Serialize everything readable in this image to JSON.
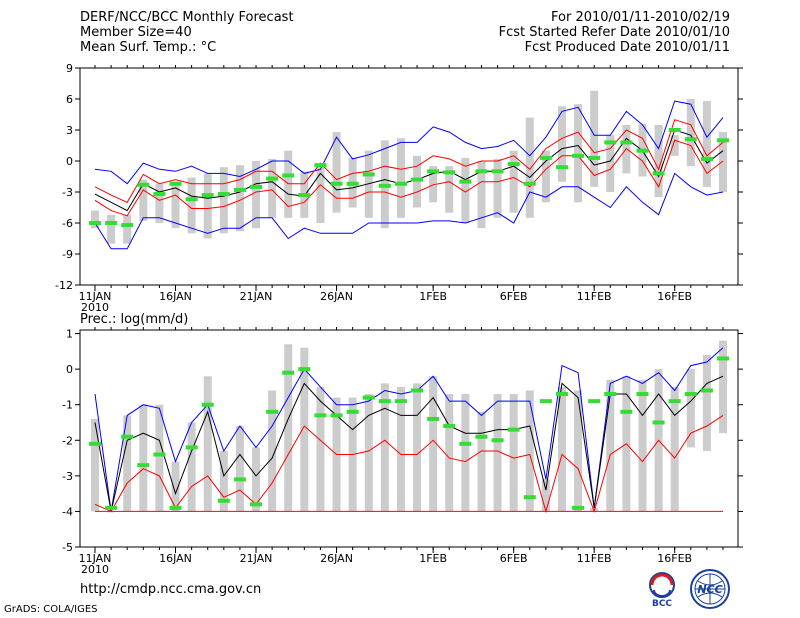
{
  "header": {
    "title": "DERF/NCC/BCC Monthly Forecast",
    "member_size": "Member Size=40",
    "variable": "Mean Surf. Temp.: °C",
    "period": "For 2010/01/11-2010/02/19",
    "started": "Fcst Started Refer Date 2010/01/10",
    "produced": "Fcst Produced Date 2010/01/11"
  },
  "footer": {
    "url": "http://cmdp.ncc.cma.gov.cn",
    "credit": "GrADS: COLA/IGES",
    "logo_bcc": "BCC",
    "logo_ncc": "NCC"
  },
  "colors": {
    "spread": "#cccccc",
    "envelope": "#0000ff",
    "mean": "#000000",
    "inner": "#ff0000",
    "observed": "#33dd33"
  },
  "chart_data": [
    {
      "type": "line",
      "title": "Mean Surf. Temp.: °C",
      "ylim": [
        -12,
        9
      ],
      "yticks": [
        -12,
        -9,
        -6,
        -3,
        0,
        3,
        6,
        9
      ],
      "xlabels": [
        {
          "i": 0,
          "text": "11JAN",
          "sub": "2010"
        },
        {
          "i": 5,
          "text": "16JAN"
        },
        {
          "i": 10,
          "text": "21JAN"
        },
        {
          "i": 15,
          "text": "26JAN"
        },
        {
          "i": 21,
          "text": "1FEB"
        },
        {
          "i": 26,
          "text": "6FEB"
        },
        {
          "i": 31,
          "text": "11FEB"
        },
        {
          "i": 36,
          "text": "16FEB"
        }
      ],
      "days": 40,
      "series": [
        {
          "name": "max",
          "color": "#0000ff",
          "values": [
            -0.8,
            -1.0,
            -2.2,
            -0.2,
            -0.8,
            -1.0,
            -0.5,
            -1.2,
            -1.2,
            -1.5,
            -0.8,
            0.0,
            0.0,
            -1.2,
            -0.8,
            2.3,
            0.2,
            0.6,
            1.2,
            1.8,
            1.8,
            3.3,
            2.8,
            1.8,
            1.2,
            1.4,
            2.0,
            0.5,
            2.3,
            4.8,
            5.2,
            2.5,
            2.5,
            4.8,
            3.5,
            1.2,
            5.8,
            5.5,
            2.3,
            4.2
          ]
        },
        {
          "name": "upper",
          "color": "#ff0000",
          "values": [
            -2.5,
            -3.3,
            -4.0,
            -1.3,
            -2.2,
            -1.8,
            -2.2,
            -2.2,
            -2.2,
            -1.8,
            -1.0,
            -1.0,
            -2.2,
            -2.2,
            -0.2,
            -1.8,
            -1.2,
            -1.0,
            -0.5,
            -0.8,
            -0.5,
            0.5,
            0.2,
            -0.5,
            0.0,
            0.0,
            0.5,
            -0.8,
            1.2,
            2.2,
            2.8,
            0.8,
            1.2,
            3.0,
            2.2,
            -0.8,
            4.0,
            3.5,
            0.5,
            1.8
          ]
        },
        {
          "name": "mean",
          "color": "#000000",
          "values": [
            -3.2,
            -4.0,
            -4.8,
            -2.2,
            -3.0,
            -2.6,
            -3.4,
            -3.6,
            -3.4,
            -3.0,
            -2.2,
            -2.0,
            -3.2,
            -3.4,
            -1.2,
            -2.8,
            -2.6,
            -2.2,
            -1.8,
            -2.2,
            -1.8,
            -1.2,
            -1.0,
            -1.8,
            -1.0,
            -1.0,
            -0.5,
            -1.6,
            0.0,
            1.2,
            1.5,
            -0.4,
            0.0,
            2.2,
            1.0,
            -1.5,
            3.0,
            2.5,
            -0.2,
            1.0
          ]
        },
        {
          "name": "lower",
          "color": "#ff0000",
          "values": [
            -3.8,
            -4.8,
            -5.3,
            -2.8,
            -3.8,
            -3.3,
            -4.6,
            -4.6,
            -4.4,
            -3.8,
            -3.0,
            -2.8,
            -4.4,
            -4.0,
            -2.3,
            -3.6,
            -3.6,
            -3.0,
            -3.0,
            -3.5,
            -3.0,
            -2.3,
            -2.0,
            -3.0,
            -2.0,
            -2.0,
            -1.6,
            -2.5,
            -0.8,
            0.5,
            0.5,
            -1.4,
            -0.8,
            1.2,
            0.0,
            -2.5,
            2.0,
            1.5,
            -1.2,
            0.0
          ]
        },
        {
          "name": "min",
          "color": "#0000ff",
          "values": [
            -6.0,
            -8.5,
            -8.5,
            -5.5,
            -5.5,
            -6.0,
            -6.5,
            -7.0,
            -6.5,
            -6.5,
            -5.5,
            -5.5,
            -7.5,
            -6.5,
            -7.0,
            -7.0,
            -7.0,
            -6.0,
            -6.0,
            -6.0,
            -6.0,
            -5.8,
            -5.8,
            -6.0,
            -5.5,
            -5.0,
            -6.0,
            -3.0,
            -3.5,
            -2.5,
            -2.5,
            -3.5,
            -4.5,
            -2.5,
            -4.0,
            -5.2,
            -1.2,
            -2.5,
            -3.3,
            -3.0
          ]
        }
      ],
      "box_top": [
        -4.8,
        -5.2,
        -5.2,
        -1.8,
        -2.2,
        -2.0,
        -1.6,
        -1.2,
        -0.6,
        -0.4,
        0.0,
        0.2,
        1.0,
        -1.0,
        -0.3,
        2.8,
        0.3,
        1.0,
        2.0,
        2.2,
        0.5,
        -0.5,
        -0.5,
        0.3,
        0.0,
        0.2,
        1.0,
        4.2,
        1.0,
        5.3,
        5.5,
        6.8,
        2.5,
        3.5,
        3.6,
        3.5,
        2.5,
        6.0,
        5.8,
        2.8
      ],
      "box_bottom": [
        -6.5,
        -8.0,
        -8.0,
        -5.8,
        -6.0,
        -6.5,
        -7.0,
        -7.5,
        -7.0,
        -6.8,
        -6.5,
        -5.5,
        -5.5,
        -5.5,
        -6.0,
        -5.0,
        -4.5,
        -5.5,
        -6.5,
        -5.5,
        -4.5,
        -4.0,
        -5.0,
        -6.0,
        -6.5,
        -5.5,
        -5.0,
        -5.5,
        -4.0,
        -2.0,
        -4.0,
        -2.5,
        -3.0,
        -1.2,
        -1.5,
        -3.5,
        0.5,
        -0.5,
        -2.5,
        -3.0
      ],
      "observed": [
        -6.0,
        -6.0,
        -6.2,
        -2.3,
        -3.2,
        -2.2,
        -3.7,
        -3.3,
        -3.2,
        -2.8,
        -2.5,
        -1.7,
        -1.4,
        -3.3,
        -0.4,
        -2.2,
        -2.2,
        -1.3,
        -2.4,
        -2.2,
        -1.8,
        -1.0,
        -1.1,
        -2.0,
        -1.0,
        -1.0,
        -0.3,
        -2.2,
        0.3,
        -0.6,
        0.5,
        0.3,
        1.8,
        1.8,
        1.0,
        -1.2,
        3.0,
        2.1,
        0.2,
        2.0
      ]
    },
    {
      "type": "line",
      "title": "Prec.: log(mm/d)",
      "ylim": [
        -5,
        1.1
      ],
      "yticks": [
        -5,
        -4,
        -3,
        -2,
        -1,
        0,
        1
      ],
      "xlabels": [
        {
          "i": 0,
          "text": "11JAN",
          "sub": "2010"
        },
        {
          "i": 5,
          "text": "16JAN"
        },
        {
          "i": 10,
          "text": "21JAN"
        },
        {
          "i": 15,
          "text": "26JAN"
        },
        {
          "i": 21,
          "text": "1FEB"
        },
        {
          "i": 26,
          "text": "6FEB"
        },
        {
          "i": 31,
          "text": "11FEB"
        },
        {
          "i": 36,
          "text": "16FEB"
        }
      ],
      "days": 40,
      "series": [
        {
          "name": "max",
          "color": "#0000ff",
          "values": [
            -0.7,
            -4.0,
            -1.3,
            -1.0,
            -1.1,
            -2.6,
            -1.5,
            -1.0,
            -2.3,
            -1.6,
            -2.2,
            -1.6,
            -0.8,
            0.0,
            -0.5,
            -1.0,
            -1.0,
            -0.9,
            -0.6,
            -0.7,
            -0.6,
            -0.2,
            -0.9,
            -0.9,
            -1.3,
            -0.9,
            -0.9,
            -0.9,
            -3.1,
            0.1,
            -0.1,
            -3.9,
            -0.4,
            -0.2,
            -0.4,
            -0.1,
            -0.6,
            0.1,
            0.2,
            0.6
          ]
        },
        {
          "name": "mean",
          "color": "#000000",
          "values": [
            -1.5,
            -4.0,
            -2.0,
            -1.8,
            -2.0,
            -3.5,
            -2.3,
            -1.2,
            -3.0,
            -2.4,
            -3.0,
            -2.5,
            -1.4,
            -0.4,
            -0.9,
            -1.3,
            -1.7,
            -1.3,
            -1.1,
            -1.3,
            -1.3,
            -0.8,
            -1.6,
            -1.8,
            -1.8,
            -1.7,
            -1.7,
            -1.6,
            -3.4,
            -0.4,
            -0.8,
            -3.9,
            -0.7,
            -0.7,
            -1.3,
            -0.7,
            -1.3,
            -0.9,
            -0.4,
            -0.2
          ]
        },
        {
          "name": "lower",
          "color": "#ff0000",
          "values": [
            -3.8,
            -4.0,
            -3.2,
            -2.8,
            -3.0,
            -3.9,
            -3.3,
            -3.0,
            -3.6,
            -3.4,
            -3.8,
            -3.2,
            -2.4,
            -1.6,
            -2.0,
            -2.4,
            -2.4,
            -2.3,
            -2.0,
            -2.4,
            -2.4,
            -2.0,
            -2.5,
            -2.6,
            -2.3,
            -2.3,
            -2.5,
            -2.4,
            -4.0,
            -2.4,
            -2.8,
            -4.0,
            -2.4,
            -2.1,
            -2.6,
            -2.0,
            -2.5,
            -1.8,
            -1.6,
            -1.3
          ]
        },
        {
          "name": "min",
          "color": "#ff0000",
          "values": [
            -4,
            -4,
            -4,
            -4,
            -4,
            -4,
            -4,
            -4,
            -4,
            -4,
            -4,
            -4,
            -4,
            -4,
            -4,
            -4,
            -4,
            -4,
            -4,
            -4,
            -4,
            -4,
            -4,
            -4,
            -4,
            -4,
            -4,
            -4,
            -4,
            -4,
            -4,
            -4,
            -4,
            -4,
            -4,
            -4,
            -4,
            -4,
            -4,
            -4
          ]
        }
      ],
      "box_top": [
        -1.4,
        -4.0,
        -1.3,
        -1.0,
        -1.0,
        -2.6,
        -1.5,
        -0.2,
        -2.3,
        -1.6,
        -2.2,
        -0.6,
        0.7,
        0.6,
        -0.5,
        -0.8,
        -0.8,
        -0.7,
        -0.4,
        -0.5,
        -0.4,
        -0.2,
        -0.7,
        -0.7,
        -1.2,
        -0.7,
        -0.7,
        -0.6,
        -3.1,
        -0.5,
        -0.6,
        -3.9,
        -0.3,
        -0.2,
        -0.3,
        0.0,
        -0.5,
        0.0,
        0.4,
        0.8
      ],
      "box_bottom": [
        -4,
        -4,
        -4,
        -4,
        -4,
        -4,
        -4,
        -4,
        -4,
        -4,
        -4,
        -4,
        -4,
        -4,
        -4,
        -4,
        -4,
        -4,
        -4,
        -4,
        -4,
        -4,
        -4,
        -4,
        -4,
        -4,
        -4,
        -4,
        -4,
        -4,
        -4,
        -4,
        -4,
        -4,
        -4,
        -4,
        -4,
        -2.2,
        -2.3,
        -1.8
      ],
      "observed": [
        -2.1,
        -3.9,
        -1.9,
        -2.7,
        -2.4,
        -3.9,
        -2.2,
        -1.0,
        -3.7,
        -3.1,
        -3.8,
        -1.2,
        -0.1,
        0.0,
        -1.3,
        -1.3,
        -1.2,
        -0.8,
        -0.9,
        -0.9,
        -0.6,
        -1.4,
        -1.6,
        -2.1,
        -1.9,
        -2.0,
        -1.7,
        -3.6,
        -0.9,
        -0.7,
        -3.9,
        -0.9,
        -0.7,
        -1.2,
        -0.7,
        -1.5,
        -0.9,
        -0.7,
        -0.6,
        0.3
      ]
    }
  ]
}
